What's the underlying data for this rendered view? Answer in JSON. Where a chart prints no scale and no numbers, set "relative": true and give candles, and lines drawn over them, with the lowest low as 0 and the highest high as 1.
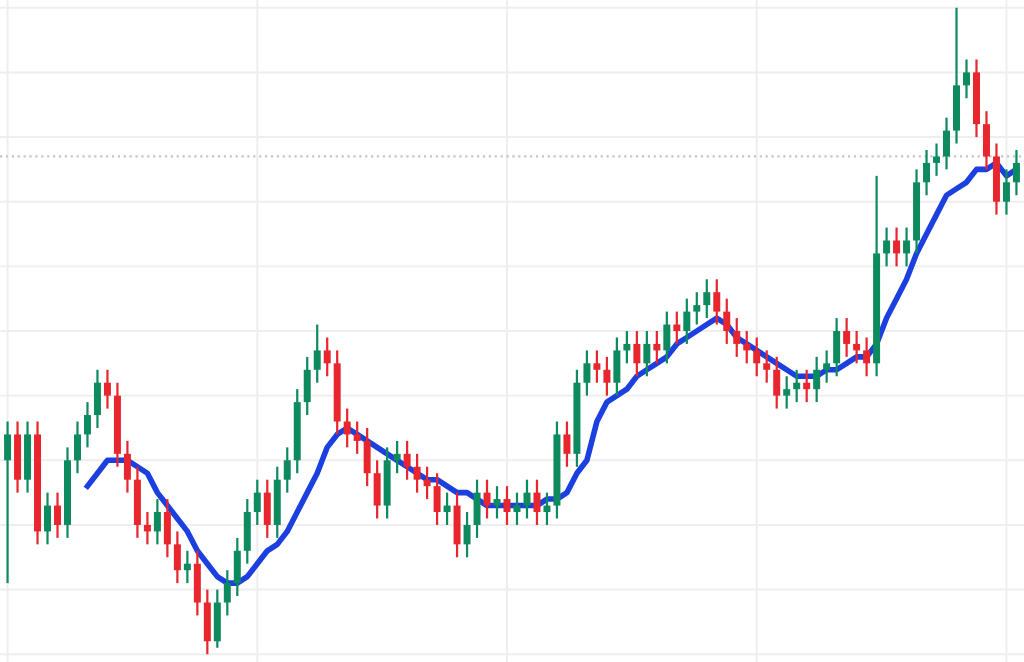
{
  "chart_data": {
    "type": "candlestick",
    "relative": true,
    "grid": true,
    "categories": [
      null,
      null,
      null,
      null,
      null,
      null,
      null,
      null,
      null,
      null,
      null,
      null,
      null,
      null,
      null,
      null,
      null,
      null,
      null,
      null,
      null,
      null,
      null,
      null,
      null,
      null,
      null,
      null,
      null,
      null,
      null,
      null,
      null,
      null,
      null,
      null,
      null,
      null,
      null,
      null,
      null,
      null,
      null,
      null,
      null,
      null,
      null,
      null,
      null,
      null,
      null,
      null,
      null,
      null,
      null,
      null,
      null,
      null,
      null,
      null,
      null,
      null,
      null,
      null,
      null,
      null,
      null,
      null,
      null,
      null,
      null,
      null,
      null,
      null,
      null,
      null,
      null,
      null,
      null,
      null,
      null,
      null,
      null,
      null,
      null,
      null,
      null,
      null,
      null,
      null,
      null,
      null,
      null,
      null,
      null,
      null,
      null,
      null,
      null,
      null,
      null,
      null
    ],
    "ohlc": [
      [
        0.3,
        0.36,
        0.11,
        0.34
      ],
      [
        0.34,
        0.36,
        0.25,
        0.27
      ],
      [
        0.27,
        0.36,
        0.25,
        0.34
      ],
      [
        0.34,
        0.36,
        0.17,
        0.19
      ],
      [
        0.19,
        0.25,
        0.17,
        0.23
      ],
      [
        0.23,
        0.25,
        0.18,
        0.2
      ],
      [
        0.2,
        0.32,
        0.18,
        0.3
      ],
      [
        0.3,
        0.36,
        0.28,
        0.34
      ],
      [
        0.34,
        0.39,
        0.32,
        0.37
      ],
      [
        0.37,
        0.44,
        0.35,
        0.42
      ],
      [
        0.42,
        0.44,
        0.38,
        0.4
      ],
      [
        0.4,
        0.42,
        0.29,
        0.31
      ],
      [
        0.31,
        0.33,
        0.25,
        0.27
      ],
      [
        0.27,
        0.29,
        0.18,
        0.2
      ],
      [
        0.2,
        0.22,
        0.17,
        0.19
      ],
      [
        0.19,
        0.24,
        0.17,
        0.22
      ],
      [
        0.22,
        0.24,
        0.15,
        0.17
      ],
      [
        0.17,
        0.19,
        0.11,
        0.13
      ],
      [
        0.13,
        0.16,
        0.11,
        0.14
      ],
      [
        0.14,
        0.16,
        0.06,
        0.08
      ],
      [
        0.08,
        0.1,
        0.0,
        0.02
      ],
      [
        0.02,
        0.1,
        0.01,
        0.08
      ],
      [
        0.08,
        0.13,
        0.06,
        0.11
      ],
      [
        0.11,
        0.18,
        0.09,
        0.16
      ],
      [
        0.16,
        0.24,
        0.14,
        0.22
      ],
      [
        0.22,
        0.27,
        0.2,
        0.25
      ],
      [
        0.25,
        0.27,
        0.18,
        0.2
      ],
      [
        0.2,
        0.29,
        0.18,
        0.27
      ],
      [
        0.27,
        0.32,
        0.25,
        0.3
      ],
      [
        0.3,
        0.41,
        0.28,
        0.39
      ],
      [
        0.39,
        0.46,
        0.37,
        0.44
      ],
      [
        0.44,
        0.51,
        0.42,
        0.47
      ],
      [
        0.47,
        0.49,
        0.43,
        0.45
      ],
      [
        0.45,
        0.47,
        0.34,
        0.36
      ],
      [
        0.36,
        0.38,
        0.32,
        0.34
      ],
      [
        0.34,
        0.36,
        0.31,
        0.33
      ],
      [
        0.33,
        0.35,
        0.26,
        0.28
      ],
      [
        0.28,
        0.3,
        0.21,
        0.23
      ],
      [
        0.23,
        0.32,
        0.21,
        0.3
      ],
      [
        0.3,
        0.33,
        0.28,
        0.31
      ],
      [
        0.31,
        0.33,
        0.27,
        0.29
      ],
      [
        0.29,
        0.31,
        0.25,
        0.27
      ],
      [
        0.27,
        0.29,
        0.24,
        0.26
      ],
      [
        0.26,
        0.28,
        0.2,
        0.22
      ],
      [
        0.22,
        0.25,
        0.2,
        0.23
      ],
      [
        0.23,
        0.25,
        0.15,
        0.17
      ],
      [
        0.17,
        0.22,
        0.15,
        0.2
      ],
      [
        0.2,
        0.27,
        0.18,
        0.25
      ],
      [
        0.25,
        0.27,
        0.21,
        0.23
      ],
      [
        0.23,
        0.26,
        0.21,
        0.24
      ],
      [
        0.24,
        0.26,
        0.2,
        0.22
      ],
      [
        0.22,
        0.25,
        0.2,
        0.23
      ],
      [
        0.23,
        0.27,
        0.21,
        0.25
      ],
      [
        0.25,
        0.27,
        0.2,
        0.22
      ],
      [
        0.22,
        0.25,
        0.2,
        0.23
      ],
      [
        0.23,
        0.36,
        0.21,
        0.34
      ],
      [
        0.34,
        0.36,
        0.29,
        0.31
      ],
      [
        0.31,
        0.44,
        0.29,
        0.42
      ],
      [
        0.42,
        0.47,
        0.4,
        0.45
      ],
      [
        0.45,
        0.47,
        0.42,
        0.44
      ],
      [
        0.44,
        0.46,
        0.4,
        0.42
      ],
      [
        0.42,
        0.49,
        0.4,
        0.47
      ],
      [
        0.47,
        0.5,
        0.45,
        0.48
      ],
      [
        0.48,
        0.5,
        0.43,
        0.45
      ],
      [
        0.45,
        0.5,
        0.43,
        0.48
      ],
      [
        0.48,
        0.5,
        0.45,
        0.47
      ],
      [
        0.47,
        0.53,
        0.45,
        0.51
      ],
      [
        0.51,
        0.53,
        0.48,
        0.5
      ],
      [
        0.5,
        0.55,
        0.48,
        0.53
      ],
      [
        0.53,
        0.56,
        0.51,
        0.54
      ],
      [
        0.54,
        0.58,
        0.52,
        0.56
      ],
      [
        0.56,
        0.58,
        0.51,
        0.53
      ],
      [
        0.53,
        0.55,
        0.48,
        0.5
      ],
      [
        0.5,
        0.52,
        0.46,
        0.48
      ],
      [
        0.48,
        0.5,
        0.45,
        0.47
      ],
      [
        0.47,
        0.49,
        0.43,
        0.45
      ],
      [
        0.45,
        0.47,
        0.42,
        0.44
      ],
      [
        0.44,
        0.46,
        0.38,
        0.4
      ],
      [
        0.4,
        0.43,
        0.38,
        0.41
      ],
      [
        0.41,
        0.44,
        0.39,
        0.42
      ],
      [
        0.42,
        0.44,
        0.39,
        0.41
      ],
      [
        0.41,
        0.46,
        0.39,
        0.44
      ],
      [
        0.44,
        0.47,
        0.42,
        0.45
      ],
      [
        0.45,
        0.52,
        0.43,
        0.5
      ],
      [
        0.5,
        0.52,
        0.46,
        0.48
      ],
      [
        0.48,
        0.5,
        0.45,
        0.47
      ],
      [
        0.47,
        0.49,
        0.43,
        0.45
      ],
      [
        0.45,
        0.74,
        0.43,
        0.62
      ],
      [
        0.62,
        0.66,
        0.6,
        0.64
      ],
      [
        0.64,
        0.66,
        0.6,
        0.62
      ],
      [
        0.62,
        0.66,
        0.6,
        0.64
      ],
      [
        0.64,
        0.75,
        0.62,
        0.73
      ],
      [
        0.73,
        0.78,
        0.71,
        0.76
      ],
      [
        0.76,
        0.79,
        0.74,
        0.77
      ],
      [
        0.77,
        0.83,
        0.75,
        0.81
      ],
      [
        0.81,
        1.0,
        0.79,
        0.88
      ],
      [
        0.88,
        0.92,
        0.86,
        0.9
      ],
      [
        0.9,
        0.92,
        0.8,
        0.82
      ],
      [
        0.82,
        0.84,
        0.75,
        0.77
      ],
      [
        0.77,
        0.79,
        0.68,
        0.7
      ],
      [
        0.7,
        0.75,
        0.68,
        0.73
      ],
      [
        0.73,
        0.78,
        0.71,
        0.76
      ]
    ],
    "colors": [
      "#0e8a5f",
      "#e8262d",
      "#0e8a5f",
      "#e8262d",
      "#0e8a5f",
      "#e8262d",
      "#0e8a5f",
      "#0e8a5f",
      "#0e8a5f",
      "#0e8a5f",
      "#e8262d",
      "#e8262d",
      "#e8262d",
      "#e8262d",
      "#e8262d",
      "#0e8a5f",
      "#e8262d",
      "#e8262d",
      "#0e8a5f",
      "#e8262d",
      "#e8262d",
      "#0e8a5f",
      "#0e8a5f",
      "#0e8a5f",
      "#0e8a5f",
      "#0e8a5f",
      "#e8262d",
      "#0e8a5f",
      "#0e8a5f",
      "#0e8a5f",
      "#0e8a5f",
      "#0e8a5f",
      "#e8262d",
      "#e8262d",
      "#e8262d",
      "#e8262d",
      "#e8262d",
      "#e8262d",
      "#0e8a5f",
      "#0e8a5f",
      "#e8262d",
      "#e8262d",
      "#e8262d",
      "#e8262d",
      "#0e8a5f",
      "#e8262d",
      "#0e8a5f",
      "#0e8a5f",
      "#e8262d",
      "#0e8a5f",
      "#e8262d",
      "#0e8a5f",
      "#0e8a5f",
      "#e8262d",
      "#0e8a5f",
      "#0e8a5f",
      "#e8262d",
      "#0e8a5f",
      "#0e8a5f",
      "#e8262d",
      "#e8262d",
      "#0e8a5f",
      "#0e8a5f",
      "#e8262d",
      "#0e8a5f",
      "#e8262d",
      "#0e8a5f",
      "#e8262d",
      "#0e8a5f",
      "#0e8a5f",
      "#0e8a5f",
      "#e8262d",
      "#e8262d",
      "#e8262d",
      "#e8262d",
      "#e8262d",
      "#e8262d",
      "#e8262d",
      "#0e8a5f",
      "#0e8a5f",
      "#e8262d",
      "#0e8a5f",
      "#0e8a5f",
      "#0e8a5f",
      "#e8262d",
      "#e8262d",
      "#e8262d",
      "#0e8a5f",
      "#0e8a5f",
      "#e8262d",
      "#0e8a5f",
      "#0e8a5f",
      "#0e8a5f",
      "#0e8a5f",
      "#0e8a5f",
      "#0e8a5f",
      "#0e8a5f",
      "#e8262d",
      "#e8262d",
      "#e8262d",
      "#0e8a5f",
      "#0e8a5f"
    ],
    "series": [
      {
        "type": "line",
        "color": "#1c3fe0",
        "values": [
          null,
          null,
          null,
          null,
          null,
          null,
          null,
          null,
          0.26,
          0.28,
          0.3,
          0.3,
          0.3,
          0.29,
          0.28,
          0.25,
          0.23,
          0.21,
          0.19,
          0.16,
          0.14,
          0.12,
          0.11,
          0.11,
          0.12,
          0.14,
          0.16,
          0.17,
          0.19,
          0.22,
          0.25,
          0.28,
          0.32,
          0.34,
          0.35,
          0.34,
          0.33,
          0.32,
          0.31,
          0.3,
          0.29,
          0.28,
          0.27,
          0.27,
          0.26,
          0.25,
          0.25,
          0.24,
          0.23,
          0.23,
          0.23,
          0.23,
          0.23,
          0.23,
          0.24,
          0.24,
          0.25,
          0.28,
          0.3,
          0.36,
          0.39,
          0.4,
          0.41,
          0.43,
          0.44,
          0.45,
          0.46,
          0.48,
          0.49,
          0.5,
          0.51,
          0.52,
          0.51,
          0.49,
          0.48,
          0.47,
          0.46,
          0.45,
          0.44,
          0.43,
          0.43,
          0.43,
          0.44,
          0.44,
          0.45,
          0.46,
          0.46,
          0.48,
          0.52,
          0.55,
          0.58,
          0.62,
          0.65,
          0.68,
          0.71,
          0.72,
          0.73,
          0.75,
          0.75,
          0.76,
          0.74,
          0.75
        ]
      }
    ],
    "ref_lines": [
      {
        "axis": "y",
        "value": 0.77,
        "line_style": "dotted",
        "color": "#c4c4c4"
      }
    ]
  }
}
